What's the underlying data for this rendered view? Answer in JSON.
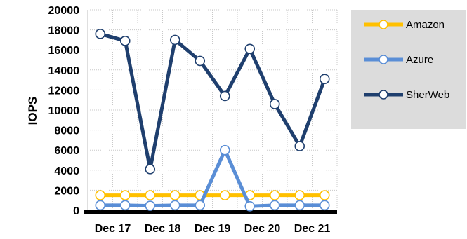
{
  "chart_data": {
    "type": "line",
    "ylabel": "IOPS",
    "ylim": [
      0,
      20000
    ],
    "yticks": [
      0,
      2000,
      4000,
      6000,
      8000,
      10000,
      12000,
      14000,
      16000,
      18000,
      20000
    ],
    "x_labels": [
      "Dec 17",
      "Dec 18",
      "Dec 19",
      "Dec 20",
      "Dec 21"
    ],
    "x_label_positions": [
      1.5,
      3.5,
      5.5,
      7.5,
      9.5
    ],
    "x": [
      1,
      2,
      3,
      4,
      5,
      6,
      7,
      8,
      9,
      10
    ],
    "grid": true,
    "legend": "right",
    "series": [
      {
        "name": "Amazon",
        "color": "#FFC000",
        "values": [
          1500,
          1500,
          1500,
          1500,
          1500,
          1500,
          1500,
          1500,
          1500,
          1500
        ]
      },
      {
        "name": "Azure",
        "color": "#5A8ED6",
        "values": [
          500,
          500,
          450,
          500,
          500,
          6000,
          400,
          500,
          500,
          500
        ]
      },
      {
        "name": "SherWeb",
        "color": "#1F3F6E",
        "values": [
          17600,
          16900,
          4100,
          17000,
          14900,
          11400,
          16100,
          10600,
          6400,
          13100
        ]
      }
    ]
  }
}
